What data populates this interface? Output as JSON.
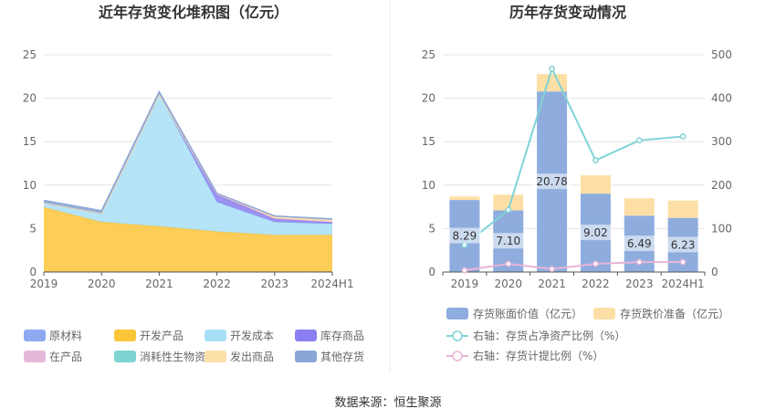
{
  "footer": {
    "source_label": "数据来源：恒生聚源"
  },
  "chart_data": [
    {
      "type": "area",
      "title": "近年存货变化堆积图（亿元）",
      "x": [
        "2019",
        "2020",
        "2021",
        "2022",
        "2023",
        "2024H1"
      ],
      "ylim": [
        0,
        25
      ],
      "yticks": [
        0,
        5,
        10,
        15,
        20,
        25
      ],
      "stacked": true,
      "grid": true,
      "legend_position": "bottom",
      "series": [
        {
          "name": "原材料",
          "color": "#8fa9f0",
          "values": [
            0.05,
            0.05,
            0.05,
            0.05,
            0.05,
            0.05
          ]
        },
        {
          "name": "开发产品",
          "color": "#fbc53a",
          "values": [
            7.4,
            5.7,
            5.2,
            4.6,
            4.2,
            4.2
          ]
        },
        {
          "name": "开发成本",
          "color": "#a8dff7",
          "values": [
            0.5,
            1.0,
            15.2,
            3.4,
            1.5,
            1.3
          ]
        },
        {
          "name": "库存商品",
          "color": "#8a7ff0",
          "values": [
            0.0,
            0.0,
            0.0,
            0.85,
            0.4,
            0.2
          ]
        },
        {
          "name": "在产品",
          "color": "#e6b8d8",
          "values": [
            0.0,
            0.0,
            0.0,
            0.1,
            0.05,
            0.05
          ]
        },
        {
          "name": "消耗性生物资产",
          "color": "#7fd3d0",
          "values": [
            0.0,
            0.0,
            0.0,
            0.0,
            0.0,
            0.0
          ]
        },
        {
          "name": "发出商品",
          "color": "#fde0a8",
          "values": [
            0.0,
            0.0,
            0.0,
            0.0,
            0.2,
            0.2
          ]
        },
        {
          "name": "其他存货",
          "color": "#8aa6d8",
          "values": [
            0.3,
            0.3,
            0.3,
            0.05,
            0.05,
            0.1
          ]
        }
      ]
    },
    {
      "type": "bar",
      "title": "历年存货变动情况",
      "categories": [
        "2019",
        "2020",
        "2021",
        "2022",
        "2023",
        "2024H1"
      ],
      "ylim_left": [
        0,
        25
      ],
      "yticks_left": [
        0,
        5,
        10,
        15,
        20,
        25
      ],
      "ylim_right": [
        0,
        500
      ],
      "yticks_right": [
        0,
        100,
        200,
        300,
        400,
        500
      ],
      "grid": true,
      "legend_position": "bottom",
      "bars": [
        {
          "name": "存货账面价值（亿元）",
          "color": "#8eadde",
          "values": [
            8.29,
            7.1,
            20.78,
            9.02,
            6.49,
            6.23
          ],
          "labels": [
            "8.29",
            "7.10",
            "20.78",
            "9.02",
            "6.49",
            "6.23"
          ]
        },
        {
          "name": "存货跌价准备（亿元）",
          "color": "#fddfa5",
          "values": [
            0.4,
            1.8,
            2.0,
            2.1,
            2.0,
            2.0
          ]
        }
      ],
      "lines": [
        {
          "name": "右轴：存货占净资产比例（%）",
          "color": "#7fd3d6",
          "axis": "right",
          "values": [
            62,
            143,
            468,
            257,
            303,
            312
          ]
        },
        {
          "name": "右轴：存货计提比例（%）",
          "color": "#e9b4d6",
          "axis": "right",
          "values": [
            4,
            19,
            7,
            19,
            23,
            23
          ]
        }
      ]
    }
  ]
}
